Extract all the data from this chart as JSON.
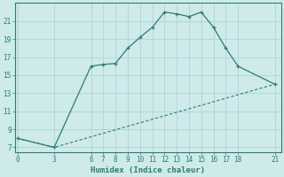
{
  "xlabel": "Humidex (Indice chaleur)",
  "line1_x": [
    0,
    3,
    6,
    7,
    8,
    9,
    10,
    11,
    12,
    13,
    14,
    15,
    16,
    17,
    18,
    21
  ],
  "line1_y": [
    8.0,
    7.0,
    16.0,
    16.2,
    16.3,
    18.0,
    19.2,
    20.3,
    22.0,
    21.8,
    21.5,
    22.0,
    20.3,
    18.0,
    16.0,
    14.0
  ],
  "line2_x": [
    0,
    3,
    21
  ],
  "line2_y": [
    8.0,
    7.0,
    14.0
  ],
  "line_color": "#2e7d6e",
  "bg_color": "#ceeaeb",
  "grid_color": "#aed4d5",
  "yticks": [
    7,
    9,
    11,
    13,
    15,
    17,
    19,
    21
  ],
  "xticks": [
    0,
    3,
    6,
    7,
    8,
    9,
    10,
    11,
    12,
    13,
    14,
    15,
    16,
    17,
    18,
    21
  ],
  "xlim": [
    -0.2,
    21.5
  ],
  "ylim": [
    6.5,
    23.0
  ]
}
